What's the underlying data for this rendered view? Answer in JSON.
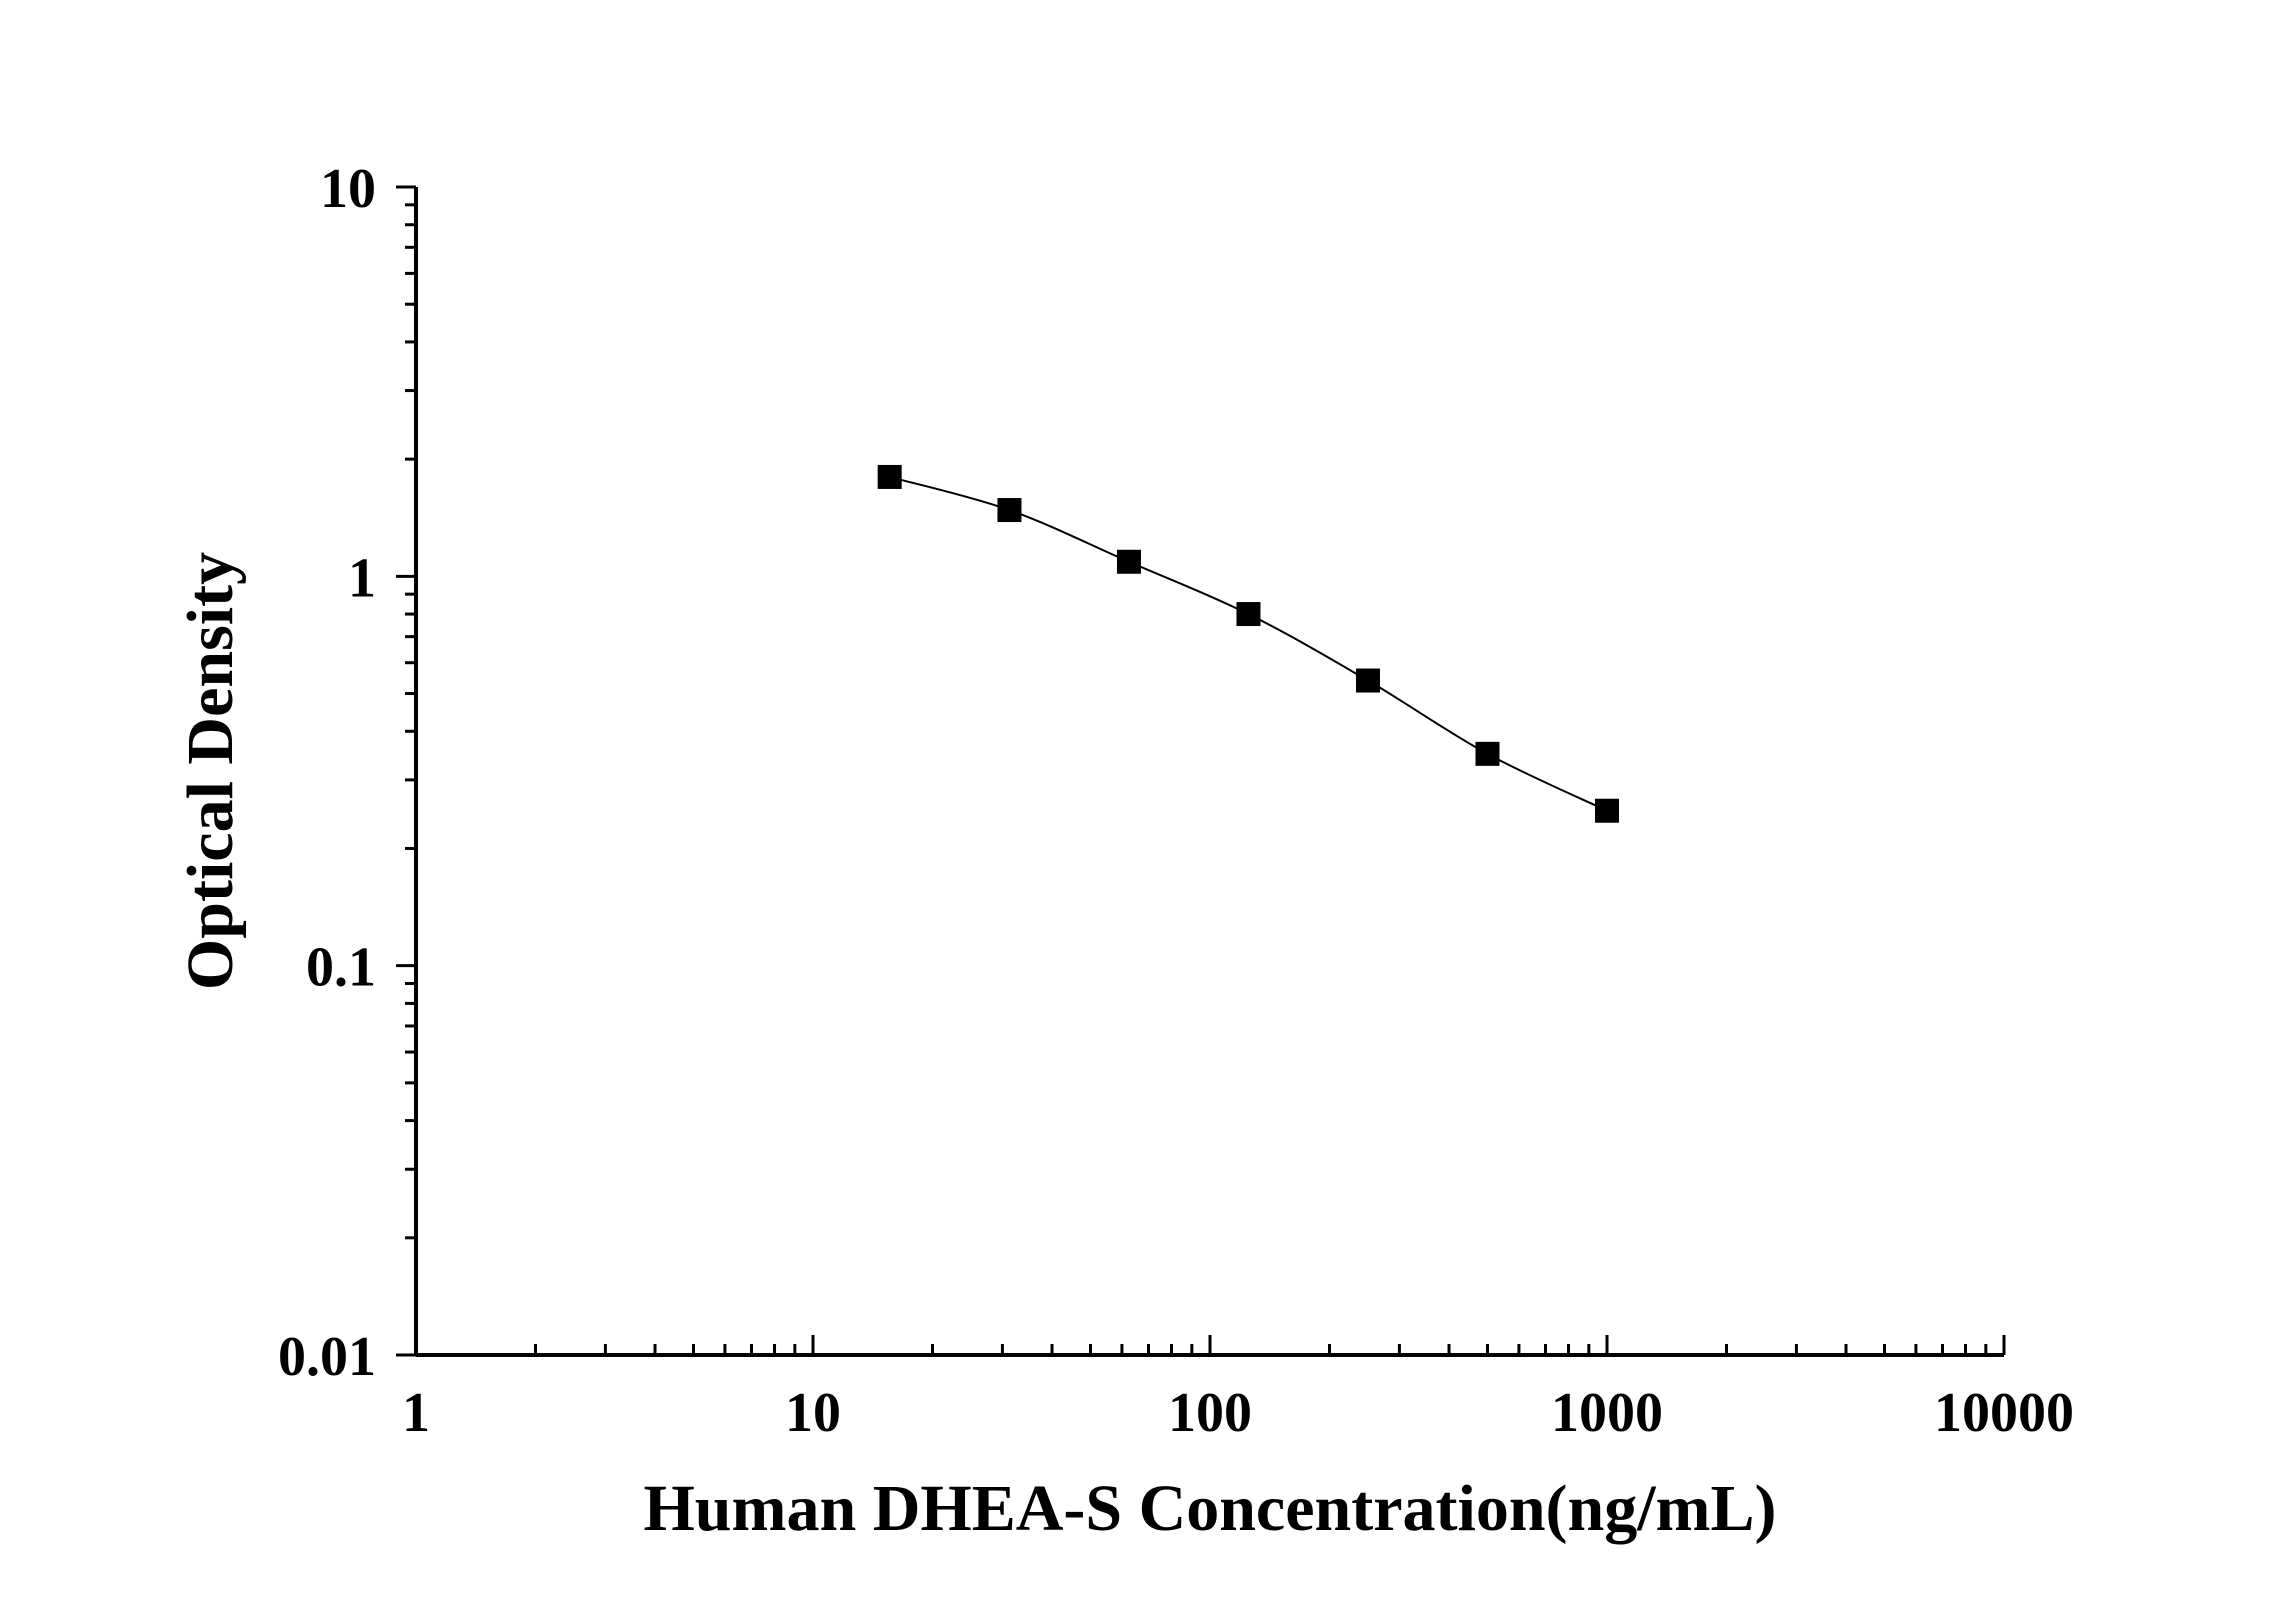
{
  "chart_data": {
    "type": "scatter",
    "xlabel": "Human DHEA-S Concentration(ng/mL)",
    "ylabel": "Optical Density",
    "xscale": "log",
    "yscale": "log",
    "xlim": [
      1,
      10000
    ],
    "ylim": [
      0.01,
      10
    ],
    "x_ticks": [
      "1",
      "10",
      "100",
      "1000",
      "10000"
    ],
    "y_ticks": [
      "0.01",
      "0.1",
      "1",
      "10"
    ],
    "grid": false,
    "marker": "square",
    "line": "smooth",
    "series": [
      {
        "x": [
          15.6,
          31.25,
          62.5,
          125,
          250,
          500,
          1000
        ],
        "y": [
          1.8,
          1.48,
          1.09,
          0.8,
          0.54,
          0.35,
          0.25
        ]
      }
    ]
  }
}
